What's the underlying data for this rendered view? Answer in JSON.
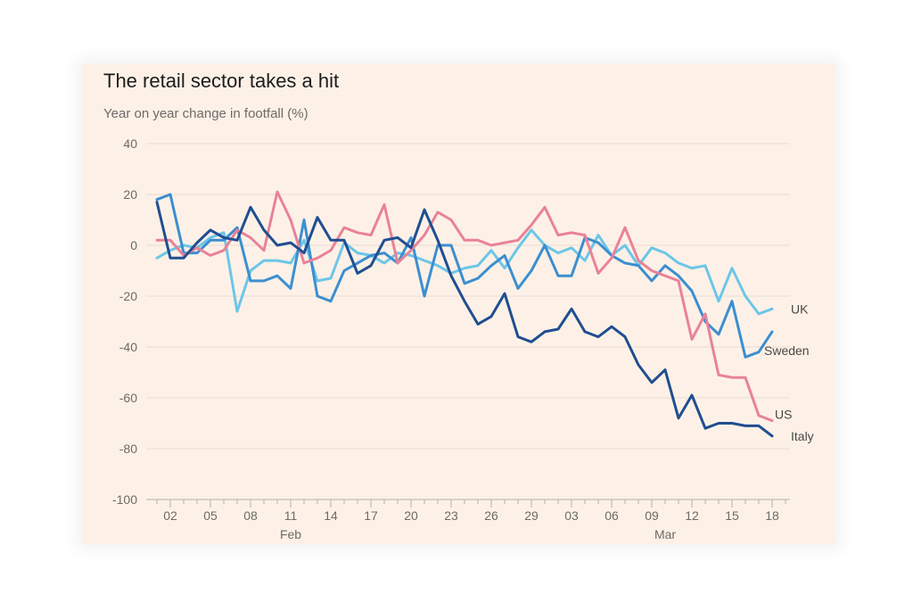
{
  "chart_data": {
    "type": "line",
    "title": "The retail sector takes a hit",
    "subtitle": "Year on year change in footfall (%)",
    "xlabel": "",
    "ylabel": "",
    "ylim": [
      -100,
      40
    ],
    "yticks": [
      40,
      20,
      0,
      -20,
      -40,
      -60,
      -80,
      -100
    ],
    "x_start": "2020-02-01",
    "x_end": "2020-03-19",
    "x_ticks": [
      {
        "x": "2020-02-02",
        "label": "02"
      },
      {
        "x": "2020-02-05",
        "label": "05"
      },
      {
        "x": "2020-02-08",
        "label": "08"
      },
      {
        "x": "2020-02-11",
        "label": "11"
      },
      {
        "x": "2020-02-14",
        "label": "14"
      },
      {
        "x": "2020-02-17",
        "label": "17"
      },
      {
        "x": "2020-02-20",
        "label": "20"
      },
      {
        "x": "2020-02-23",
        "label": "23"
      },
      {
        "x": "2020-02-26",
        "label": "26"
      },
      {
        "x": "2020-02-29",
        "label": "29"
      },
      {
        "x": "2020-03-03",
        "label": "03"
      },
      {
        "x": "2020-03-06",
        "label": "06"
      },
      {
        "x": "2020-03-09",
        "label": "09"
      },
      {
        "x": "2020-03-12",
        "label": "12"
      },
      {
        "x": "2020-03-15",
        "label": "15"
      },
      {
        "x": "2020-03-18",
        "label": "18"
      }
    ],
    "month_labels": [
      {
        "x": "2020-02-11",
        "label": "Feb"
      },
      {
        "x": "2020-03-10",
        "label": "Mar"
      }
    ],
    "grid": true,
    "series": [
      {
        "name": "UK",
        "color": "#6cc6e8",
        "values": [
          -5,
          -2,
          0,
          -1,
          3,
          5,
          -26,
          -10,
          -6,
          -6,
          -7,
          2,
          -14,
          -13,
          1,
          -3,
          -4,
          -7,
          -3,
          -4,
          -6,
          -8,
          -11,
          -9,
          -8,
          -2,
          -9,
          -1,
          6,
          0,
          -3,
          -1,
          -6,
          4,
          -4,
          0,
          -8,
          -1,
          -3,
          -7,
          -9,
          -8,
          -22,
          -9,
          -20,
          -27,
          -25
        ]
      },
      {
        "name": "Sweden",
        "color": "#3c8ed0",
        "values": [
          18,
          20,
          -3,
          -3,
          2,
          2,
          7,
          -14,
          -14,
          -12,
          -17,
          10,
          -20,
          -22,
          -10,
          -7,
          -4,
          -3,
          -7,
          3,
          -20,
          0,
          0,
          -15,
          -13,
          -8,
          -4,
          -17,
          -10,
          0,
          -12,
          -12,
          3,
          1,
          -4,
          -7,
          -8,
          -14,
          -8,
          -12,
          -18,
          -30,
          -35,
          -22,
          -44,
          -42,
          -34
        ]
      },
      {
        "name": "US",
        "color": "#e98299",
        "values": [
          2,
          2,
          -4,
          -1,
          -4,
          -2,
          6,
          3,
          -2,
          21,
          10,
          -7,
          -5,
          -2,
          7,
          5,
          4,
          16,
          -7,
          -2,
          4,
          13,
          10,
          2,
          2,
          0,
          1,
          2,
          8,
          15,
          4,
          5,
          4,
          -11,
          -5,
          7,
          -6,
          -10,
          -12,
          -14,
          -37,
          -27,
          -51,
          -52,
          -52,
          -67,
          -69
        ]
      },
      {
        "name": "Italy",
        "color": "#1f4e91",
        "values": [
          17,
          -5,
          -5,
          1,
          6,
          3,
          2,
          15,
          6,
          0,
          1,
          -3,
          11,
          2,
          2,
          -11,
          -8,
          2,
          3,
          -1,
          14,
          2,
          -12,
          -22,
          -31,
          -28,
          -19,
          -36,
          -38,
          -34,
          -33,
          -25,
          -34,
          -36,
          -32,
          -36,
          -47,
          -54,
          -49,
          -68,
          -59,
          -72,
          -70,
          -70,
          -71,
          -71,
          -75
        ]
      }
    ]
  }
}
